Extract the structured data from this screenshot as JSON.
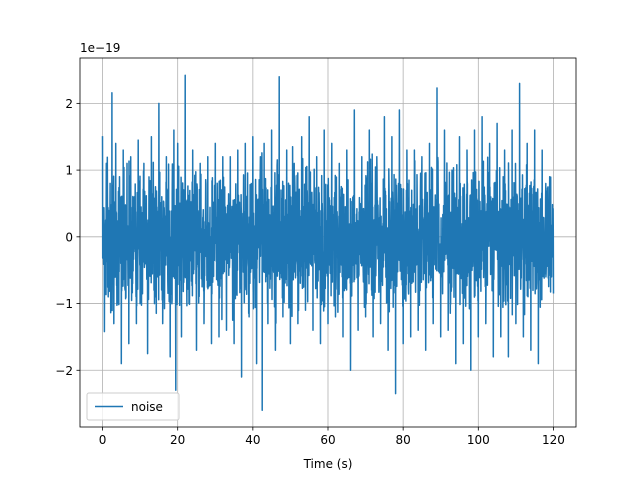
{
  "chart_data": {
    "type": "line",
    "title": "",
    "xlabel": "Time (s)",
    "ylabel": "",
    "y_offset_text": "1e−19",
    "y_scale": 1e-19,
    "xlim": [
      -6,
      126
    ],
    "ylim": [
      -2.85,
      2.68
    ],
    "xticks": [
      0,
      20,
      40,
      60,
      80,
      100,
      120
    ],
    "xtick_labels": [
      "0",
      "20",
      "40",
      "60",
      "80",
      "100",
      "120"
    ],
    "yticks": [
      -2,
      -1,
      0,
      1,
      2
    ],
    "ytick_labels": [
      "−2",
      "−1",
      "0",
      "1",
      "2"
    ],
    "grid": true,
    "legend_position": "lower-left",
    "series": [
      {
        "name": "noise",
        "color": "#1f77b4",
        "x_range": [
          0,
          120
        ],
        "points": [
          [
            0,
            1.51
          ],
          [
            0.5,
            -1.42
          ],
          [
            1,
            1.1
          ],
          [
            1.5,
            -0.9
          ],
          [
            2,
            0.8
          ],
          [
            2.5,
            2.16
          ],
          [
            3,
            -1.3
          ],
          [
            3.5,
            1.4
          ],
          [
            4,
            -1.0
          ],
          [
            4.5,
            0.9
          ],
          [
            5,
            -1.9
          ],
          [
            5.5,
            1.3
          ],
          [
            6,
            -0.8
          ],
          [
            6.5,
            1.1
          ],
          [
            7,
            -1.6
          ],
          [
            7.5,
            1.2
          ],
          [
            8,
            -0.7
          ],
          [
            8.5,
            0.6
          ],
          [
            9,
            -1.3
          ],
          [
            9.5,
            1.45
          ],
          [
            10,
            -1.0
          ],
          [
            11,
            1.1
          ],
          [
            12,
            -1.75
          ],
          [
            13,
            1.5
          ],
          [
            14,
            -0.9
          ],
          [
            15,
            2.0
          ],
          [
            16,
            -1.3
          ],
          [
            17,
            1.2
          ],
          [
            18,
            -1.8
          ],
          [
            19,
            1.6
          ],
          [
            19.5,
            -2.3
          ],
          [
            20,
            1.4
          ],
          [
            21,
            -1.5
          ],
          [
            22,
            2.42
          ],
          [
            23,
            -1.0
          ],
          [
            24,
            1.3
          ],
          [
            25,
            -1.7
          ],
          [
            26,
            1.1
          ],
          [
            27,
            -1.3
          ],
          [
            28,
            1.2
          ],
          [
            29,
            -1.6
          ],
          [
            30,
            1.4
          ],
          [
            31,
            -1.5
          ],
          [
            32,
            1.2
          ],
          [
            33,
            -1.4
          ],
          [
            34,
            1.2
          ],
          [
            35,
            -1.6
          ],
          [
            36,
            1.3
          ],
          [
            37,
            -2.1
          ],
          [
            38,
            1.4
          ],
          [
            39,
            -1.2
          ],
          [
            40,
            1.5
          ],
          [
            41,
            -1.9
          ],
          [
            42,
            1.2
          ],
          [
            42.5,
            -2.6
          ],
          [
            43,
            1.4
          ],
          [
            44,
            -1.3
          ],
          [
            45,
            1.6
          ],
          [
            46,
            -1.7
          ],
          [
            47,
            2.4
          ],
          [
            48,
            -1.2
          ],
          [
            49,
            1.3
          ],
          [
            50,
            -1.6
          ],
          [
            51,
            1.1
          ],
          [
            52,
            -1.3
          ],
          [
            53,
            1.5
          ],
          [
            54,
            -1.1
          ],
          [
            55,
            1.8
          ],
          [
            56,
            -1.4
          ],
          [
            57,
            1.2
          ],
          [
            58,
            -1.6
          ],
          [
            59,
            1.6
          ],
          [
            60,
            -1.3
          ],
          [
            61,
            1.4
          ],
          [
            62,
            -1.2
          ],
          [
            63,
            1.1
          ],
          [
            64,
            -1.5
          ],
          [
            65,
            1.3
          ],
          [
            66,
            -2.0
          ],
          [
            67,
            1.9
          ],
          [
            68,
            -1.4
          ],
          [
            69,
            1.2
          ],
          [
            70,
            -1.2
          ],
          [
            71,
            1.6
          ],
          [
            72,
            -1.5
          ],
          [
            73,
            1.2
          ],
          [
            74,
            -1.3
          ],
          [
            75,
            1.8
          ],
          [
            76,
            -1.7
          ],
          [
            77,
            1.5
          ],
          [
            78,
            -2.35
          ],
          [
            79,
            1.9
          ],
          [
            80,
            -1.6
          ],
          [
            81,
            1.3
          ],
          [
            82,
            -1.5
          ],
          [
            83,
            1.3
          ],
          [
            84,
            -1.4
          ],
          [
            85,
            1.2
          ],
          [
            86,
            -1.7
          ],
          [
            87,
            1.4
          ],
          [
            88,
            -1.3
          ],
          [
            89,
            2.23
          ],
          [
            90,
            -1.5
          ],
          [
            91,
            1.6
          ],
          [
            92,
            -1.4
          ],
          [
            93,
            1.0
          ],
          [
            94,
            -1.9
          ],
          [
            95,
            1.5
          ],
          [
            96,
            -1.6
          ],
          [
            97,
            1.3
          ],
          [
            98,
            -2.0
          ],
          [
            99,
            1.6
          ],
          [
            100,
            -1.5
          ],
          [
            101,
            1.8
          ],
          [
            102,
            -1.3
          ],
          [
            103,
            1.4
          ],
          [
            104,
            -1.8
          ],
          [
            105,
            1.7
          ],
          [
            106,
            -1.5
          ],
          [
            107,
            1.3
          ],
          [
            108,
            -1.8
          ],
          [
            109,
            1.6
          ],
          [
            110,
            -1.3
          ],
          [
            111,
            2.3
          ],
          [
            112,
            -1.5
          ],
          [
            113,
            1.4
          ],
          [
            114,
            -1.7
          ],
          [
            115,
            1.6
          ],
          [
            116,
            -1.9
          ],
          [
            117,
            1.3
          ],
          [
            118,
            -0.6
          ],
          [
            119,
            0.9
          ],
          [
            119.5,
            -0.6
          ],
          [
            120,
            -0.85
          ]
        ]
      }
    ]
  }
}
